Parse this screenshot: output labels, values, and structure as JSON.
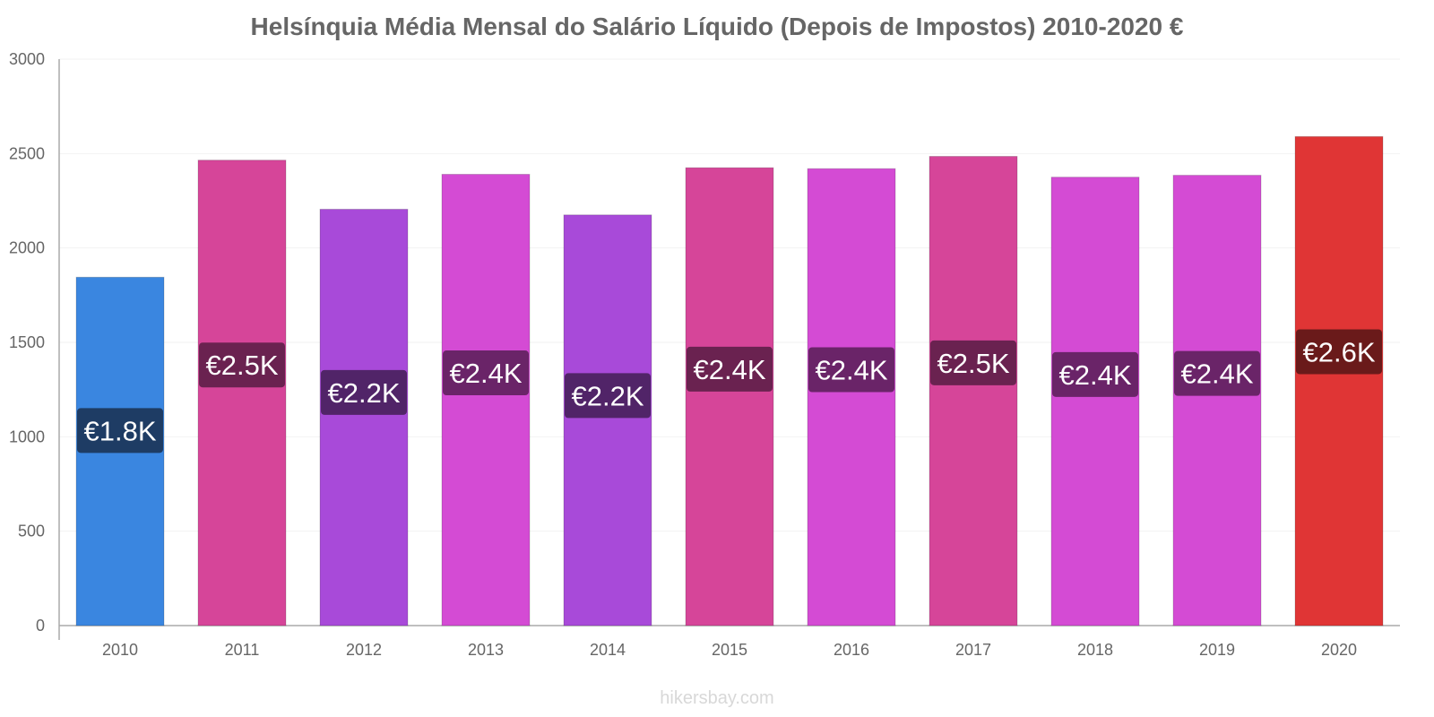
{
  "chart_data": {
    "type": "bar",
    "title": "Helsínquia Média Mensal do Salário Líquido (Depois de Impostos) 2010-2020 €",
    "xlabel": "",
    "ylabel": "",
    "ylim": [
      0,
      3000
    ],
    "yticks": [
      0,
      500,
      1000,
      1500,
      2000,
      2500,
      3000
    ],
    "grid": true,
    "categories": [
      "2010",
      "2011",
      "2012",
      "2013",
      "2014",
      "2015",
      "2016",
      "2017",
      "2018",
      "2019",
      "2020"
    ],
    "values": [
      1845,
      2465,
      2205,
      2390,
      2175,
      2425,
      2420,
      2485,
      2375,
      2385,
      2590
    ],
    "data_labels": [
      "€1.8K",
      "€2.5K",
      "€2.2K",
      "€2.4K",
      "€2.2K",
      "€2.4K",
      "€2.4K",
      "€2.5K",
      "€2.4K",
      "€2.4K",
      "€2.6K"
    ],
    "bar_colors": [
      "#3a86e0",
      "#d64599",
      "#a84ad9",
      "#d44bd4",
      "#a84ad9",
      "#d64599",
      "#d44bd4",
      "#d64599",
      "#d44bd4",
      "#d44bd4",
      "#e03535"
    ],
    "label_colors": [
      "#1e3c64",
      "#6a2250",
      "#512468",
      "#6a2468",
      "#512468",
      "#6a2250",
      "#6a2468",
      "#6a2250",
      "#6a2468",
      "#6a2468",
      "#6a1a1a"
    ]
  },
  "watermark": "hikersbay.com"
}
